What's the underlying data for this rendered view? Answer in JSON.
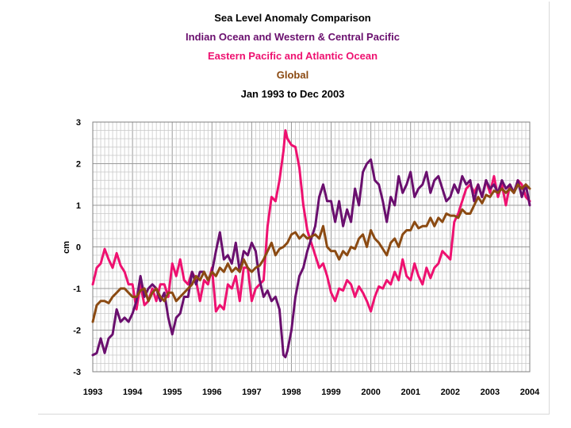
{
  "chart_data": {
    "type": "line",
    "title": "Sea Level Anomaly Comparison",
    "subtitles": [
      {
        "text": "Indian Ocean and Western & Central Pacific",
        "color": "#6a0f6e"
      },
      {
        "text": "Eastern Pacific and Atlantic Ocean",
        "color": "#ee1170"
      },
      {
        "text": "Global",
        "color": "#8b4a12"
      },
      {
        "text": "Jan 1993 to Dec 2003",
        "color": "#000000"
      }
    ],
    "xlabel": "",
    "ylabel": "cm",
    "xlim": [
      1993,
      2004
    ],
    "ylim": [
      -3,
      3
    ],
    "x_ticks": [
      "1993",
      "1994",
      "1995",
      "1996",
      "1997",
      "1998",
      "1999",
      "2000",
      "2001",
      "2002",
      "2003",
      "2004"
    ],
    "y_ticks": [
      "-3",
      "-2",
      "-1",
      "0",
      "1",
      "2",
      "3"
    ],
    "grid": true,
    "legend": "none",
    "series": [
      {
        "name": "Eastern Pacific and Atlantic Ocean",
        "color": "#ee1170",
        "x": [
          1993.0,
          1993.1,
          1993.2,
          1993.3,
          1993.4,
          1993.5,
          1993.6,
          1993.7,
          1993.8,
          1993.9,
          1994.0,
          1994.1,
          1994.2,
          1994.3,
          1994.4,
          1994.5,
          1994.6,
          1994.7,
          1994.8,
          1994.9,
          1995.0,
          1995.1,
          1995.2,
          1995.3,
          1995.4,
          1995.5,
          1995.6,
          1995.7,
          1995.8,
          1995.9,
          1996.0,
          1996.1,
          1996.2,
          1996.3,
          1996.4,
          1996.5,
          1996.6,
          1996.7,
          1996.8,
          1996.9,
          1997.0,
          1997.1,
          1997.2,
          1997.3,
          1997.4,
          1997.5,
          1997.6,
          1997.7,
          1997.8,
          1997.85,
          1997.9,
          1998.0,
          1998.1,
          1998.2,
          1998.3,
          1998.4,
          1998.5,
          1998.6,
          1998.7,
          1998.8,
          1998.9,
          1999.0,
          1999.1,
          1999.2,
          1999.3,
          1999.4,
          1999.5,
          1999.6,
          1999.7,
          1999.8,
          1999.9,
          2000.0,
          2000.1,
          2000.2,
          2000.3,
          2000.4,
          2000.5,
          2000.6,
          2000.7,
          2000.8,
          2000.9,
          2001.0,
          2001.1,
          2001.2,
          2001.3,
          2001.4,
          2001.5,
          2001.6,
          2001.7,
          2001.8,
          2001.9,
          2002.0,
          2002.1,
          2002.2,
          2002.3,
          2002.4,
          2002.5,
          2002.6,
          2002.7,
          2002.8,
          2002.9,
          2003.0,
          2003.1,
          2003.2,
          2003.3,
          2003.4,
          2003.5,
          2003.6,
          2003.7,
          2003.8,
          2003.9,
          2004.0
        ],
        "y": [
          -0.9,
          -0.5,
          -0.4,
          -0.05,
          -0.3,
          -0.5,
          -0.15,
          -0.45,
          -0.6,
          -0.9,
          -0.9,
          -1.5,
          -0.9,
          -1.4,
          -1.3,
          -1.0,
          -1.3,
          -0.9,
          -0.9,
          -1.2,
          -0.4,
          -0.7,
          -0.3,
          -0.8,
          -0.9,
          -0.6,
          -0.8,
          -1.3,
          -0.8,
          -0.9,
          -0.5,
          -1.55,
          -1.4,
          -1.5,
          -0.9,
          -1.0,
          -0.7,
          -1.3,
          -0.5,
          -0.5,
          -1.3,
          -1.0,
          -0.9,
          -0.8,
          0.5,
          1.2,
          1.1,
          1.6,
          2.3,
          2.8,
          2.6,
          2.45,
          2.4,
          1.9,
          1.0,
          0.4,
          0.1,
          -0.2,
          -0.5,
          -0.4,
          -0.7,
          -1.1,
          -1.3,
          -1.0,
          -1.05,
          -0.8,
          -0.9,
          -1.2,
          -0.95,
          -1.1,
          -1.3,
          -1.55,
          -1.2,
          -0.95,
          -1.0,
          -0.8,
          -0.9,
          -0.6,
          -0.8,
          -0.3,
          -0.7,
          -0.8,
          -0.4,
          -0.7,
          -0.9,
          -0.5,
          -0.75,
          -0.5,
          -0.4,
          -0.1,
          -0.2,
          -0.3,
          0.6,
          0.8,
          1.1,
          1.4,
          1.5,
          1.3,
          1.5,
          1.2,
          1.6,
          1.3,
          1.7,
          1.2,
          1.5,
          1.0,
          1.5,
          1.3,
          1.6,
          1.5,
          1.2,
          1.1
        ]
      },
      {
        "name": "Indian Ocean and Western & Central Pacific",
        "color": "#6a0f6e",
        "x": [
          1993.0,
          1993.1,
          1993.2,
          1993.3,
          1993.4,
          1993.5,
          1993.6,
          1993.7,
          1993.8,
          1993.9,
          1994.0,
          1994.1,
          1994.2,
          1994.3,
          1994.4,
          1994.5,
          1994.6,
          1994.7,
          1994.8,
          1994.9,
          1995.0,
          1995.1,
          1995.2,
          1995.3,
          1995.4,
          1995.5,
          1995.6,
          1995.7,
          1995.8,
          1995.9,
          1996.0,
          1996.1,
          1996.2,
          1996.3,
          1996.4,
          1996.5,
          1996.6,
          1996.7,
          1996.8,
          1996.9,
          1997.0,
          1997.1,
          1997.2,
          1997.3,
          1997.4,
          1997.5,
          1997.6,
          1997.7,
          1997.8,
          1997.85,
          1997.9,
          1998.0,
          1998.1,
          1998.2,
          1998.3,
          1998.4,
          1998.5,
          1998.6,
          1998.7,
          1998.8,
          1998.9,
          1999.0,
          1999.1,
          1999.2,
          1999.3,
          1999.4,
          1999.5,
          1999.6,
          1999.7,
          1999.8,
          1999.9,
          2000.0,
          2000.1,
          2000.2,
          2000.3,
          2000.4,
          2000.5,
          2000.6,
          2000.7,
          2000.8,
          2000.9,
          2001.0,
          2001.1,
          2001.2,
          2001.3,
          2001.4,
          2001.5,
          2001.6,
          2001.7,
          2001.8,
          2001.9,
          2002.0,
          2002.1,
          2002.2,
          2002.3,
          2002.4,
          2002.5,
          2002.6,
          2002.7,
          2002.8,
          2002.9,
          2003.0,
          2003.1,
          2003.2,
          2003.3,
          2003.4,
          2003.5,
          2003.6,
          2003.7,
          2003.8,
          2003.9,
          2004.0
        ],
        "y": [
          -2.6,
          -2.55,
          -2.2,
          -2.55,
          -2.2,
          -2.1,
          -1.5,
          -1.8,
          -1.7,
          -1.8,
          -1.6,
          -1.3,
          -0.7,
          -1.2,
          -1.0,
          -0.9,
          -1.0,
          -1.3,
          -1.1,
          -1.7,
          -2.1,
          -1.7,
          -1.6,
          -1.2,
          -1.2,
          -0.6,
          -0.9,
          -0.6,
          -0.6,
          -0.8,
          -0.6,
          -0.1,
          0.35,
          -0.3,
          -0.2,
          -0.4,
          0.1,
          -0.6,
          -0.1,
          -0.2,
          0.1,
          -0.1,
          -0.8,
          -1.2,
          -1.05,
          -1.3,
          -1.2,
          -1.5,
          -2.6,
          -2.65,
          -2.5,
          -2.0,
          -1.2,
          -0.7,
          -0.5,
          -0.1,
          0.2,
          0.5,
          1.2,
          1.5,
          1.1,
          1.1,
          0.6,
          1.1,
          0.5,
          0.9,
          0.6,
          1.4,
          1.0,
          1.8,
          2.0,
          2.1,
          1.6,
          1.5,
          1.1,
          0.6,
          1.2,
          1.0,
          1.7,
          1.3,
          1.5,
          1.8,
          1.2,
          1.4,
          1.5,
          1.8,
          1.3,
          1.6,
          1.7,
          1.4,
          1.1,
          1.2,
          1.5,
          1.3,
          1.7,
          1.5,
          1.6,
          1.1,
          1.5,
          1.2,
          1.6,
          1.4,
          1.5,
          1.3,
          1.6,
          1.4,
          1.5,
          1.3,
          1.6,
          1.2,
          1.5,
          1.0
        ]
      },
      {
        "name": "Global",
        "color": "#8b4a12",
        "x": [
          1993.0,
          1993.1,
          1993.2,
          1993.3,
          1993.4,
          1993.5,
          1993.6,
          1993.7,
          1993.8,
          1993.9,
          1994.0,
          1994.1,
          1994.2,
          1994.3,
          1994.4,
          1994.5,
          1994.6,
          1994.7,
          1994.8,
          1994.9,
          1995.0,
          1995.1,
          1995.2,
          1995.3,
          1995.4,
          1995.5,
          1995.6,
          1995.7,
          1995.8,
          1995.9,
          1996.0,
          1996.1,
          1996.2,
          1996.3,
          1996.4,
          1996.5,
          1996.6,
          1996.7,
          1996.8,
          1996.9,
          1997.0,
          1997.1,
          1997.2,
          1997.3,
          1997.4,
          1997.5,
          1997.6,
          1997.7,
          1997.8,
          1997.9,
          1998.0,
          1998.1,
          1998.2,
          1998.3,
          1998.4,
          1998.5,
          1998.6,
          1998.7,
          1998.8,
          1998.9,
          1999.0,
          1999.1,
          1999.2,
          1999.3,
          1999.4,
          1999.5,
          1999.6,
          1999.7,
          1999.8,
          1999.9,
          2000.0,
          2000.1,
          2000.2,
          2000.3,
          2000.4,
          2000.5,
          2000.6,
          2000.7,
          2000.8,
          2000.9,
          2001.0,
          2001.1,
          2001.2,
          2001.3,
          2001.4,
          2001.5,
          2001.6,
          2001.7,
          2001.8,
          2001.9,
          2002.0,
          2002.1,
          2002.2,
          2002.3,
          2002.4,
          2002.5,
          2002.6,
          2002.7,
          2002.8,
          2002.9,
          2003.0,
          2003.1,
          2003.2,
          2003.3,
          2003.4,
          2003.5,
          2003.6,
          2003.7,
          2003.8,
          2003.9,
          2004.0
        ],
        "y": [
          -1.8,
          -1.4,
          -1.3,
          -1.3,
          -1.35,
          -1.2,
          -1.1,
          -1.0,
          -1.0,
          -1.1,
          -1.2,
          -1.2,
          -1.05,
          -1.0,
          -1.3,
          -1.1,
          -1.0,
          -1.2,
          -1.3,
          -1.1,
          -1.1,
          -1.3,
          -1.2,
          -1.1,
          -1.0,
          -0.9,
          -0.7,
          -0.8,
          -0.6,
          -0.8,
          -0.6,
          -0.7,
          -0.5,
          -0.6,
          -0.4,
          -0.6,
          -0.5,
          -0.6,
          -0.3,
          -0.5,
          -0.6,
          -0.5,
          -0.45,
          -0.3,
          -0.1,
          0.1,
          -0.2,
          -0.05,
          0.0,
          0.1,
          0.3,
          0.35,
          0.2,
          0.3,
          0.2,
          0.25,
          0.3,
          0.2,
          0.5,
          0.0,
          -0.1,
          -0.1,
          -0.3,
          -0.1,
          -0.2,
          0.0,
          -0.05,
          0.2,
          0.3,
          0.0,
          0.4,
          0.2,
          0.1,
          -0.05,
          -0.2,
          0.1,
          0.2,
          0.0,
          0.3,
          0.4,
          0.4,
          0.6,
          0.45,
          0.5,
          0.5,
          0.7,
          0.5,
          0.7,
          0.6,
          0.8,
          0.75,
          0.75,
          0.7,
          0.9,
          0.8,
          0.8,
          1.0,
          1.2,
          1.05,
          1.25,
          1.2,
          1.35,
          1.3,
          1.4,
          1.3,
          1.4,
          1.3,
          1.5,
          1.4,
          1.5,
          1.4
        ]
      }
    ]
  }
}
